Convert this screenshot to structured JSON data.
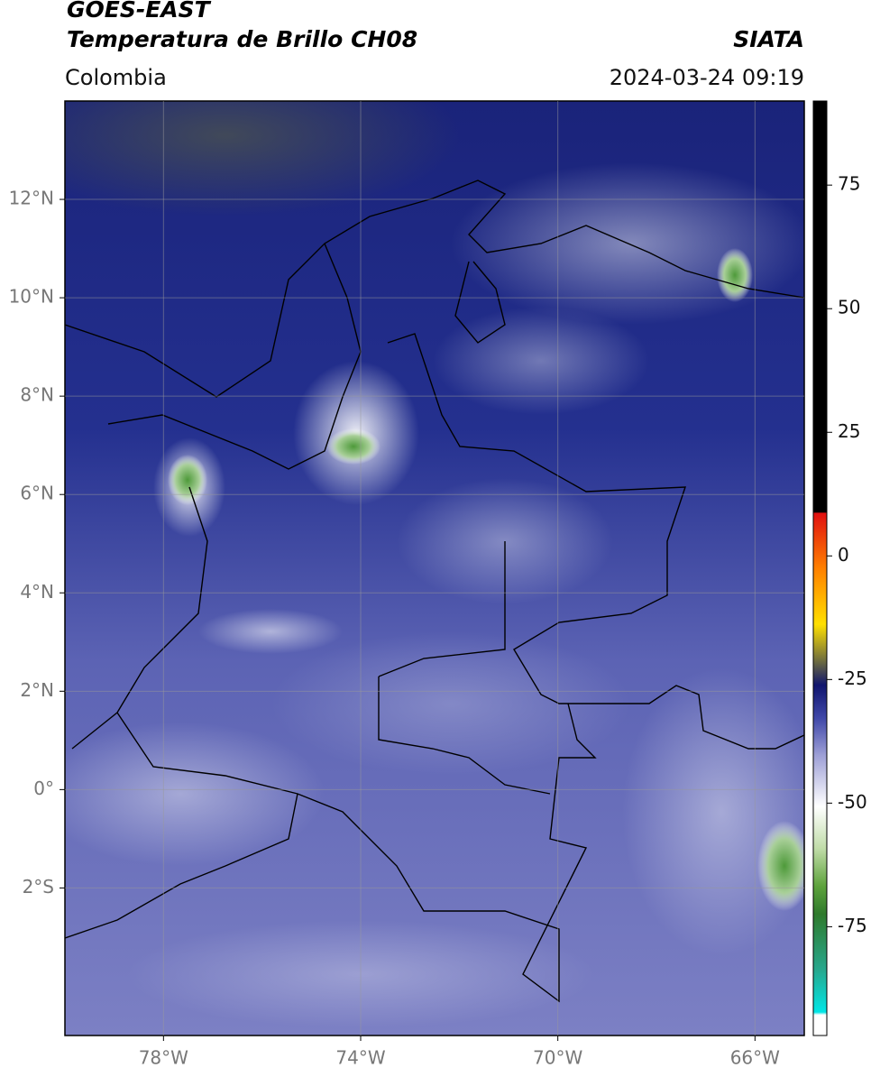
{
  "header": {
    "title_line1": "GOES-EAST",
    "title_line2": "Temperatura de Brillo CH08",
    "brand": "SIATA",
    "region": "Colombia",
    "datetime": "2024-03-24 09:19"
  },
  "map": {
    "xlim": [
      -80,
      -65
    ],
    "ylim": [
      -5,
      14
    ],
    "xticks": [
      {
        "value": -78,
        "label": "78°W"
      },
      {
        "value": -74,
        "label": "74°W"
      },
      {
        "value": -70,
        "label": "70°W"
      },
      {
        "value": -66,
        "label": "66°W"
      }
    ],
    "yticks": [
      {
        "value": 12,
        "label": "12°N"
      },
      {
        "value": 10,
        "label": "10°N"
      },
      {
        "value": 8,
        "label": "8°N"
      },
      {
        "value": 6,
        "label": "6°N"
      },
      {
        "value": 4,
        "label": "4°N"
      },
      {
        "value": 2,
        "label": "2°N"
      },
      {
        "value": 0,
        "label": "0°"
      },
      {
        "value": -2,
        "label": "2°S"
      }
    ],
    "grid": true
  },
  "colorbar": {
    "lim": [
      -97,
      92
    ],
    "ticks": [
      75,
      50,
      25,
      0,
      -25,
      -50,
      -75
    ]
  }
}
